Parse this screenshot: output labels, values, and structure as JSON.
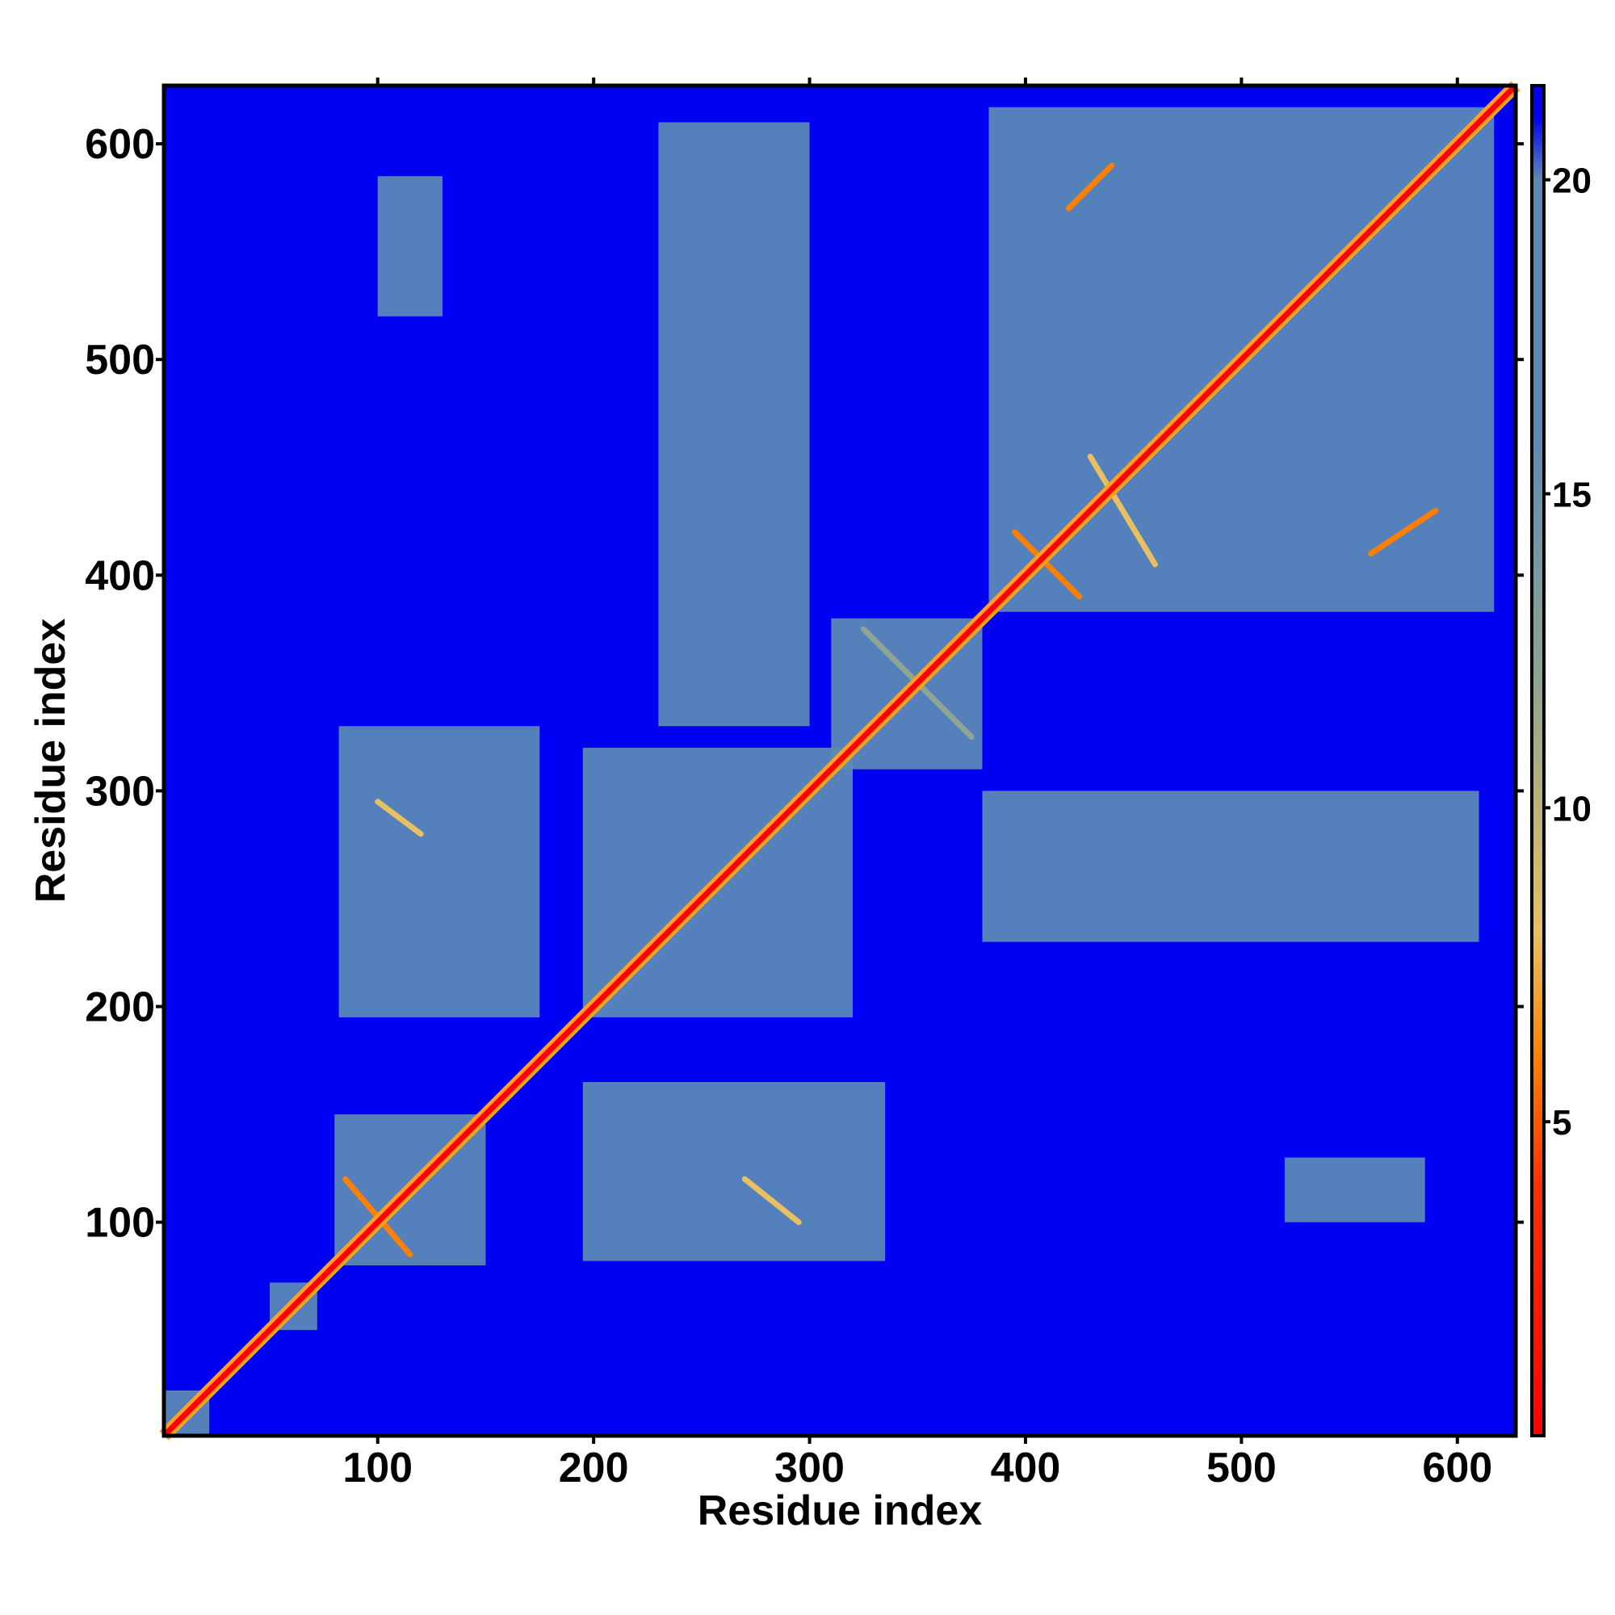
{
  "chart_data": {
    "type": "heatmap",
    "title": "",
    "xlabel": "Residue index",
    "ylabel": "Residue index",
    "xlim": [
      1,
      627
    ],
    "ylim": [
      1,
      627
    ],
    "xticks": [
      100,
      200,
      300,
      400,
      500,
      600
    ],
    "yticks": [
      100,
      200,
      300,
      400,
      500,
      600
    ],
    "grid": false,
    "legend": "colorbar at right",
    "colorbar": {
      "range": [
        0,
        21.5
      ],
      "ticks": [
        5,
        10,
        15,
        20
      ],
      "stops": [
        {
          "value": 0,
          "color": "#ff0000"
        },
        {
          "value": 4,
          "color": "#ff3000"
        },
        {
          "value": 6,
          "color": "#ff8000"
        },
        {
          "value": 8,
          "color": "#e8c060"
        },
        {
          "value": 12,
          "color": "#8fa590"
        },
        {
          "value": 16,
          "color": "#5b8bb5"
        },
        {
          "value": 20,
          "color": "#5b8bb5"
        },
        {
          "value": 21,
          "color": "#0000f5"
        }
      ]
    },
    "background_value": 21,
    "blocks": [
      {
        "x": [
          1,
          22
        ],
        "y": [
          1,
          22
        ],
        "value": 16
      },
      {
        "x": [
          50,
          72
        ],
        "y": [
          50,
          72
        ],
        "value": 16
      },
      {
        "x": [
          80,
          150
        ],
        "y": [
          80,
          150
        ],
        "value": 16
      },
      {
        "x": [
          195,
          320
        ],
        "y": [
          195,
          320
        ],
        "value": 16
      },
      {
        "x": [
          383,
          617
        ],
        "y": [
          383,
          617
        ],
        "value": 16
      },
      {
        "x": [
          82,
          175
        ],
        "y": [
          195,
          330
        ],
        "value": 17
      },
      {
        "x": [
          195,
          335
        ],
        "y": [
          82,
          165
        ],
        "value": 17
      },
      {
        "x": [
          230,
          300
        ],
        "y": [
          330,
          610
        ],
        "value": 18
      },
      {
        "x": [
          380,
          610
        ],
        "y": [
          230,
          300
        ],
        "value": 18
      },
      {
        "x": [
          310,
          380
        ],
        "y": [
          310,
          380
        ],
        "value": 16
      },
      {
        "x": [
          100,
          130
        ],
        "y": [
          520,
          585
        ],
        "value": 18
      },
      {
        "x": [
          520,
          585
        ],
        "y": [
          100,
          130
        ],
        "value": 18
      }
    ],
    "contact_streaks": [
      {
        "from": [
          85,
          120
        ],
        "to": [
          115,
          85
        ],
        "value": 6
      },
      {
        "from": [
          100,
          295
        ],
        "to": [
          120,
          280
        ],
        "value": 7
      },
      {
        "from": [
          270,
          120
        ],
        "to": [
          295,
          100
        ],
        "value": 7
      },
      {
        "from": [
          395,
          420
        ],
        "to": [
          425,
          390
        ],
        "value": 5
      },
      {
        "from": [
          325,
          375
        ],
        "to": [
          375,
          325
        ],
        "value": 9
      },
      {
        "from": [
          420,
          570
        ],
        "to": [
          440,
          590
        ],
        "value": 6
      },
      {
        "from": [
          560,
          410
        ],
        "to": [
          590,
          430
        ],
        "value": 6
      },
      {
        "from": [
          430,
          455
        ],
        "to": [
          460,
          405
        ],
        "value": 7
      }
    ]
  }
}
